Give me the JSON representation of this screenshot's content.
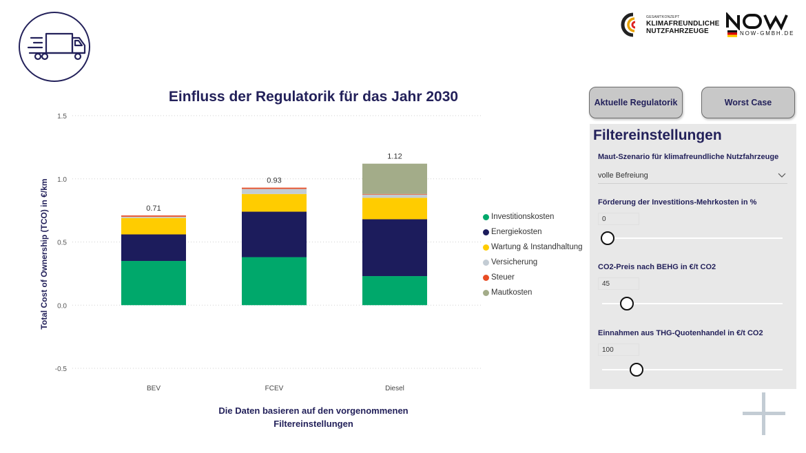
{
  "header": {
    "brand_kn": {
      "small": "GESAMTKONZEPT",
      "line1": "KLIMAFREUNDLICHE",
      "line2": "NUTZFAHRZEUGE"
    },
    "brand_now": {
      "text": "NOW",
      "sub": "NOW-GMBH.DE"
    },
    "truck_icon": "truck-icon"
  },
  "chart_title": "Einfluss der Regulatorik für das Jahr 2030",
  "footnote": {
    "line1": "Die Daten basieren auf den vorgenommenen",
    "line2": "Filtereinstellungen"
  },
  "chart_data": {
    "type": "bar",
    "stacked": true,
    "title": "Einfluss der Regulatorik für das Jahr 2030",
    "xlabel": "",
    "ylabel": "Total Cost of Ownership (TCO) in €/km",
    "ylim": [
      -0.5,
      1.5
    ],
    "yticks": [
      "1.5",
      "1.0",
      "0.5",
      "0.0",
      "-0.5"
    ],
    "ytick_values": [
      1.5,
      1.0,
      0.5,
      0.0,
      -0.5
    ],
    "grid": true,
    "legend_position": "right",
    "categories": [
      "BEV",
      "FCEV",
      "Diesel"
    ],
    "totals": [
      "0.71",
      "0.93",
      "1.12"
    ],
    "series": [
      {
        "name": "Investitionskosten",
        "color": "#00a86b",
        "values": [
          0.35,
          0.38,
          0.23
        ]
      },
      {
        "name": "Energiekosten",
        "color": "#1c1c5c",
        "values": [
          0.21,
          0.36,
          0.45
        ]
      },
      {
        "name": "Wartung & Instandhaltung",
        "color": "#ffcc00",
        "values": [
          0.13,
          0.14,
          0.17
        ]
      },
      {
        "name": "Versicherung",
        "color": "#c3ccd4",
        "values": [
          0.01,
          0.04,
          0.025
        ]
      },
      {
        "name": "Steuer",
        "color": "#e84c24",
        "values": [
          0.01,
          0.01,
          0.005
        ]
      },
      {
        "name": "Mautkosten",
        "color": "#a3ac89",
        "values": [
          0.0,
          0.0,
          0.24
        ]
      }
    ]
  },
  "buttons": {
    "current": "Aktuelle Regulatorik",
    "worst": "Worst Case"
  },
  "filters": {
    "title": "Filtereinstellungen",
    "maut": {
      "label": "Maut-Szenario für klimafreundliche Nutzfahrzeuge",
      "value": "volle Befreiung"
    },
    "foerderung": {
      "label": "Förderung der Investitions-Mehrkosten in %",
      "value": "0"
    },
    "co2": {
      "label": "CO2-Preis nach BEHG in €/t CO2",
      "value": "45"
    },
    "thg": {
      "label": "Einnahmen aus THG-Quotenhandel in €/t CO2",
      "value": "100"
    }
  }
}
